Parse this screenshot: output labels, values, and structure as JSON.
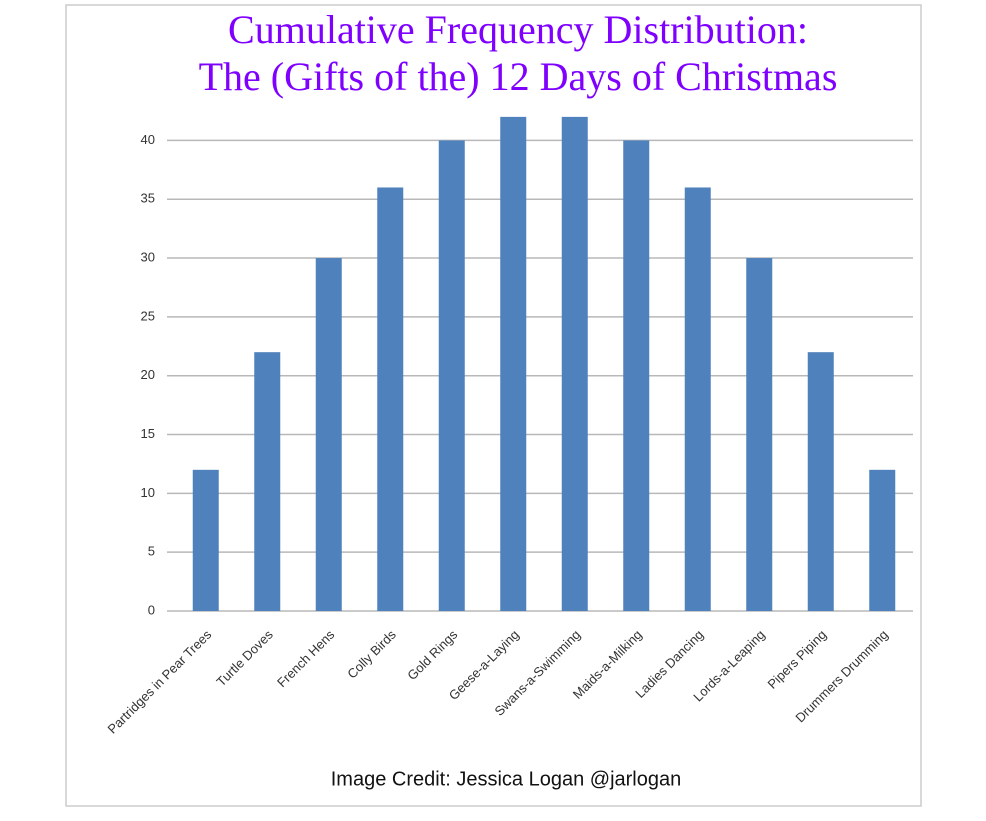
{
  "chart_data": {
    "type": "bar",
    "title": "Cumulative Frequency Distribution:",
    "subtitle": "The (Gifts of the) 12 Days of Christmas",
    "annotation": "Image Credit: Jessica Logan @jarlogan",
    "categories": [
      "Partridges in Pear Trees",
      "Turtle Doves",
      "French Hens",
      "Colly Birds",
      "Gold Rings",
      "Geese-a-Laying",
      "Swans-a-Swimming",
      "Maids-a-Milking",
      "Ladies Dancing",
      "Lords-a-Leaping",
      "Pipers Piping",
      "Drummers Drumming"
    ],
    "values": [
      12,
      22,
      30,
      36,
      40,
      42,
      42,
      40,
      36,
      30,
      22,
      12
    ],
    "color": "#4f81bd",
    "ylim": [
      0,
      42.5
    ],
    "yticks": [
      0,
      5,
      10,
      15,
      20,
      25,
      30,
      35,
      40
    ],
    "grid": true
  }
}
